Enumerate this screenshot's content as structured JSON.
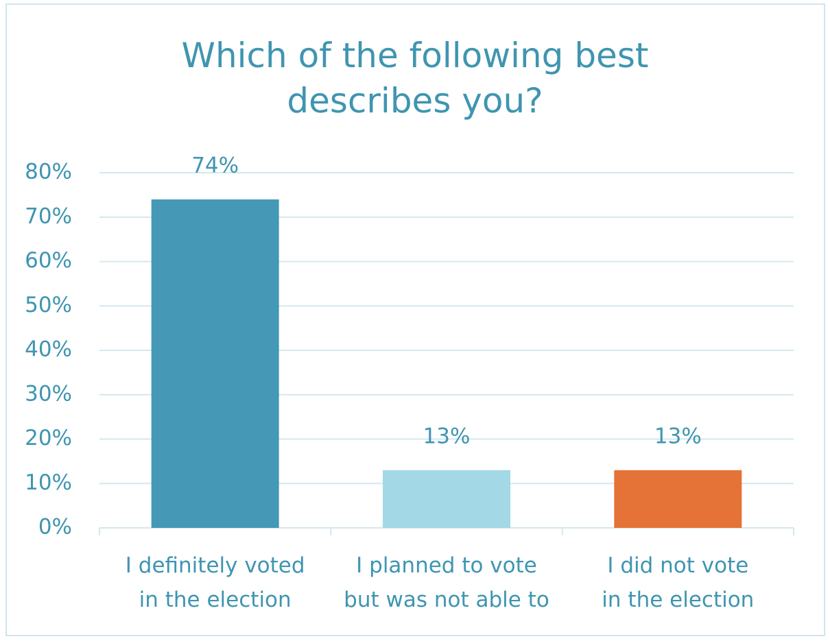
{
  "chart_data": {
    "type": "bar",
    "title": "Which of the following best\ndescribes you?",
    "categories": [
      "I definitely voted\nin the election",
      "I planned to vote\nbut was not able to",
      "I did not vote\nin the election"
    ],
    "values": [
      74,
      13,
      13
    ],
    "value_labels": [
      "74%",
      "13%",
      "13%"
    ],
    "colors": [
      "#4598b6",
      "#a3d8e6",
      "#e57236"
    ],
    "ylim": [
      0,
      80
    ],
    "yticks": [
      {
        "value": 0,
        "label": "0%"
      },
      {
        "value": 10,
        "label": "10%"
      },
      {
        "value": 20,
        "label": "20%"
      },
      {
        "value": 30,
        "label": "30%"
      },
      {
        "value": 40,
        "label": "40%"
      },
      {
        "value": 50,
        "label": "50%"
      },
      {
        "value": 60,
        "label": "60%"
      },
      {
        "value": 70,
        "label": "70%"
      },
      {
        "value": 80,
        "label": "80%"
      }
    ],
    "grid": true
  }
}
